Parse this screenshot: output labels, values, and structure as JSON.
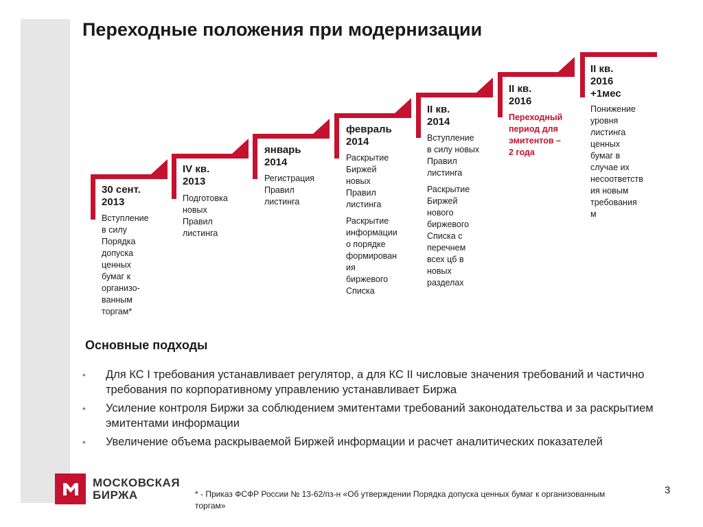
{
  "title": "Переходные положения при модернизации",
  "steps": [
    {
      "title": "30 сент.\n2013",
      "paragraphs": [
        {
          "text": "Вступление\nв силу\nПорядка\nдопуска\nценных\nбумаг к\nорганизо-\nванным\nторгам*",
          "highlight": false
        }
      ]
    },
    {
      "title": " IV кв.\n2013",
      "paragraphs": [
        {
          "text": "Подготовка\nновых\nПравил\nлистинга",
          "highlight": false
        }
      ]
    },
    {
      "title": "январь\n2014",
      "paragraphs": [
        {
          "text": "Регистрация\nПравил\nлистинга",
          "highlight": false
        }
      ]
    },
    {
      "title": "февраль\n2014",
      "paragraphs": [
        {
          "text": "Раскрытие\nБиржей\nновых\nПравил\nлистинга",
          "highlight": false
        },
        {
          "text": "Раскрытие\nинформации\nо порядке\nформирован\nия\nбиржевого\nСписка",
          "highlight": false
        }
      ]
    },
    {
      "title": "II кв.\n2014",
      "paragraphs": [
        {
          "text": "Вступление\nв силу новых\nПравил\nлистинга",
          "highlight": false
        },
        {
          "text": "Раскрытие\nБиржей\nнового\nбиржевого\nСписка с\nперечнем\nвсех цб в\nновых\nразделах",
          "highlight": false
        }
      ]
    },
    {
      "title": "II кв.\n2016",
      "paragraphs": [
        {
          "text": "Переходный\nпериод для\nэмитентов –\n2 года",
          "highlight": true
        }
      ]
    },
    {
      "title": "II кв.\n2016\n+1мес",
      "paragraphs": [
        {
          "text": "Понижение\nуровня\nлистинга\nценных\nбумаг в\nслучае их\nнесоответств\nия новым\nтребования\nм",
          "highlight": false
        }
      ]
    }
  ],
  "approaches": {
    "title": "Основные подходы",
    "items": [
      "Для КС I требования устанавливает регулятор, а для КС II числовые значения требований и частично требования по корпоративному управлению устанавливает Биржа",
      "Усиление контроля Биржи за соблюдением эмитентами требований законодательства и за раскрытием эмитентами информации",
      "Увеличение объема раскрываемой Биржей информации и расчет аналитических показателей"
    ]
  },
  "logo": {
    "text": "МОСКОВСКАЯ\nБИРЖА",
    "icon": "moscow-exchange-logo-icon"
  },
  "footnote": "* -  Приказ ФСФР России № 13-62/пз-н «Об утверждении Порядка допуска ценных бумаг к организованным торгам»",
  "page_number": "3",
  "colors": {
    "accent": "#c4122f",
    "band": "#e6e6e6",
    "text": "#1a1a1a"
  }
}
